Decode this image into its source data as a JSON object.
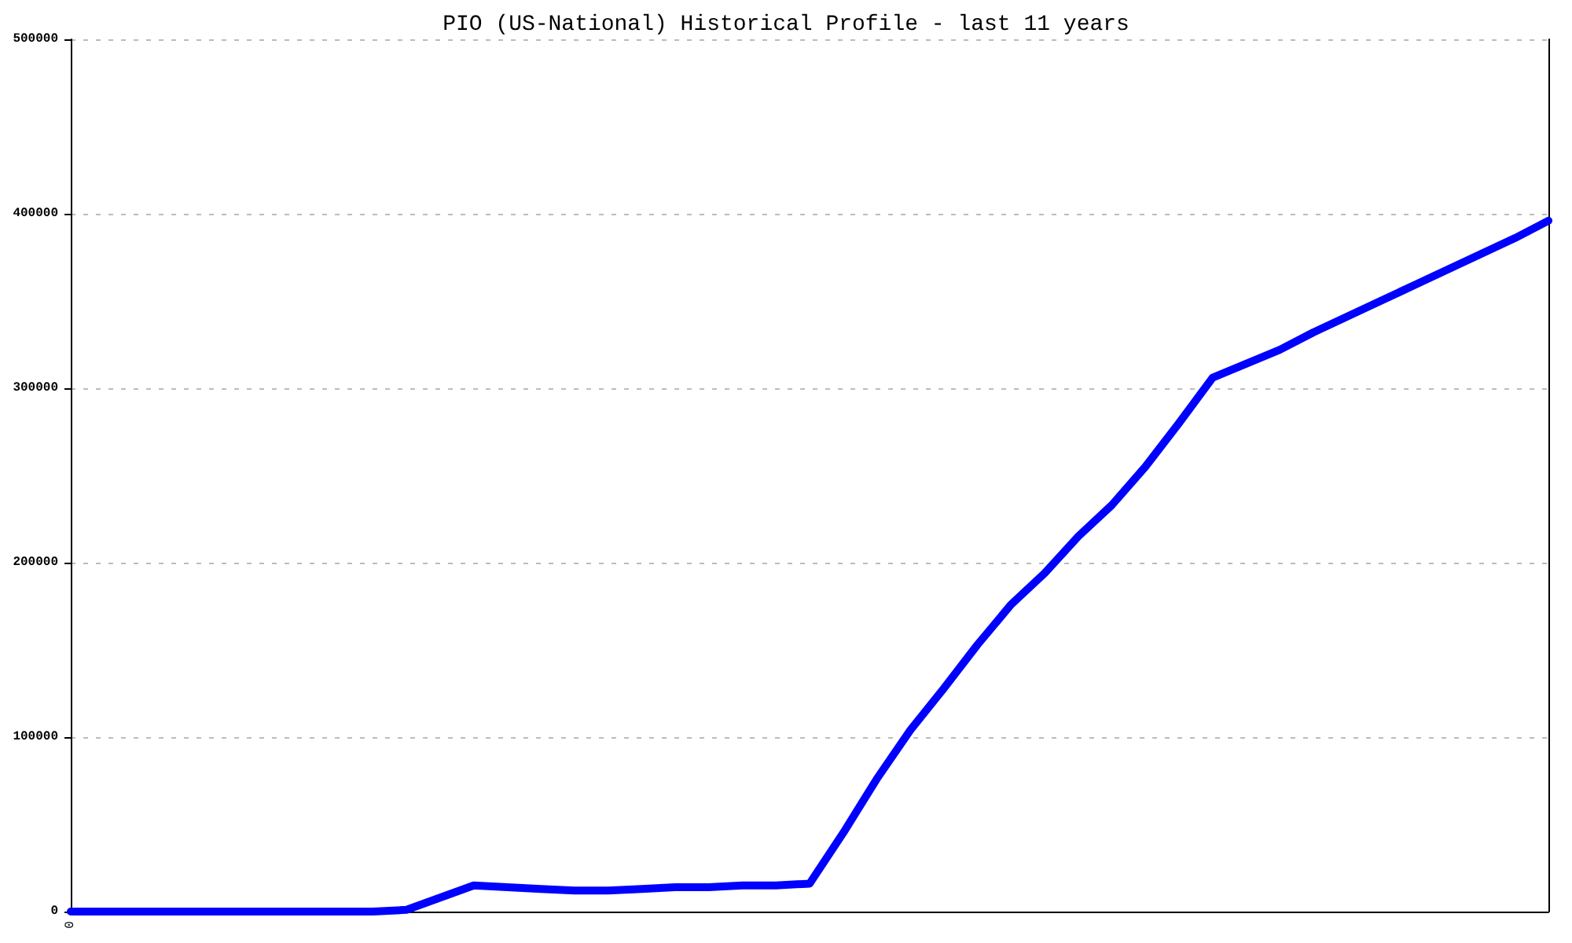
{
  "chart_data": {
    "type": "line",
    "title": "PIO (US-National) Historical Profile - last 11 years",
    "categories": [
      "0",
      null,
      null,
      null,
      null,
      null,
      null,
      null,
      null,
      null,
      null,
      null,
      null,
      null,
      null,
      null,
      null,
      null,
      null,
      null,
      null,
      null,
      null,
      null,
      null,
      null,
      null,
      null,
      null,
      null,
      null,
      null,
      null,
      null,
      null,
      null,
      null,
      null,
      null,
      null,
      null,
      null,
      null,
      null,
      null
    ],
    "series": [
      {
        "color": "#0000ff",
        "values": [
          0,
          0,
          0,
          0,
          0,
          0,
          0,
          0,
          0,
          0,
          1000,
          8000,
          15000,
          14000,
          13000,
          12000,
          12000,
          13000,
          14000,
          14000,
          15000,
          15000,
          16000,
          45000,
          76000,
          104000,
          128000,
          153000,
          176000,
          194000,
          215000,
          233000,
          255000,
          280000,
          306000,
          314000,
          322000,
          332000,
          341000,
          350000,
          359000,
          368000,
          377000,
          386000,
          396000
        ]
      }
    ],
    "ylim": [
      0,
      500000
    ],
    "yticks": [
      0,
      100000,
      200000,
      300000,
      400000,
      500000
    ],
    "grid": "y",
    "marker": "none",
    "line_style": "solid"
  }
}
